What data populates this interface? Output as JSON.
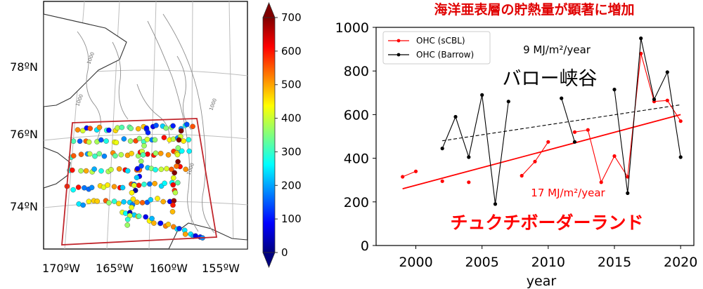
{
  "chart_data": [
    {
      "type": "scatter",
      "panel": "map",
      "lat_ticks": [
        "78ºN",
        "76ºN",
        "74ºN"
      ],
      "lon_ticks": [
        "170ºW",
        "165ºW",
        "160ºW",
        "155ºW"
      ],
      "isobath_labels": [
        "1000",
        "1000",
        "1000",
        "1000"
      ],
      "colorbar": {
        "min": 0,
        "max": 700,
        "ticks": [
          "700",
          "600",
          "500",
          "400",
          "300",
          "200",
          "100",
          "0"
        ],
        "colors": [
          "#00007f",
          "#0000ff",
          "#007fff",
          "#00ffff",
          "#7fff7f",
          "#ffff00",
          "#ff7f00",
          "#ff0000",
          "#7f0000"
        ]
      }
    },
    {
      "type": "line",
      "panel": "timeseries",
      "title": "海洋亜表層の貯熱量が顕著に増加",
      "xlabel": "year",
      "xlim": [
        1997,
        2021
      ],
      "ylim": [
        0,
        1000
      ],
      "x_ticks": [
        "2000",
        "2005",
        "2010",
        "2015",
        "2020"
      ],
      "y_ticks": [
        "0",
        "200",
        "400",
        "600",
        "800",
        "1000"
      ],
      "legend": "top-left",
      "series": [
        {
          "name": "OHC (sCBL)",
          "color": "#ff0000",
          "points": [
            [
              1999,
              315
            ],
            [
              2000,
              340
            ],
            [
              2002,
              295
            ],
            [
              2004,
              290
            ],
            [
              2008,
              320
            ],
            [
              2009,
              385
            ],
            [
              2010,
              475
            ],
            [
              2012,
              520
            ],
            [
              2013,
              530
            ],
            [
              2014,
              290
            ],
            [
              2015,
              410
            ],
            [
              2016,
              315
            ],
            [
              2017,
              880
            ],
            [
              2018,
              660
            ],
            [
              2019,
              665
            ],
            [
              2020,
              570
            ]
          ],
          "segments": [
            [
              [
                1999,
                315
              ],
              [
                2000,
                340
              ]
            ],
            [
              [
                2008,
                320
              ],
              [
                2009,
                385
              ],
              [
                2010,
                475
              ]
            ],
            [
              [
                2012,
                520
              ],
              [
                2013,
                530
              ],
              [
                2014,
                290
              ],
              [
                2015,
                410
              ],
              [
                2016,
                315
              ],
              [
                2017,
                880
              ],
              [
                2018,
                660
              ],
              [
                2019,
                665
              ],
              [
                2020,
                570
              ]
            ]
          ],
          "trend": {
            "from": [
              1999,
              260
            ],
            "to": [
              2020,
              600
            ],
            "label": "17 MJ/m²/year"
          },
          "region_label": "チュクチボーダーランド"
        },
        {
          "name": "OHC (Barrow)",
          "color": "#000000",
          "points": [
            [
              2002,
              445
            ],
            [
              2003,
              590
            ],
            [
              2004,
              405
            ],
            [
              2005,
              690
            ],
            [
              2006,
              190
            ],
            [
              2007,
              660
            ],
            [
              2011,
              675
            ],
            [
              2012,
              475
            ],
            [
              2015,
              715
            ],
            [
              2016,
              240
            ],
            [
              2017,
              950
            ],
            [
              2018,
              670
            ],
            [
              2019,
              795
            ],
            [
              2020,
              405
            ]
          ],
          "segments": [
            [
              [
                2002,
                445
              ],
              [
                2003,
                590
              ],
              [
                2004,
                405
              ],
              [
                2005,
                690
              ],
              [
                2006,
                190
              ],
              [
                2007,
                660
              ]
            ],
            [
              [
                2011,
                675
              ],
              [
                2012,
                475
              ]
            ],
            [
              [
                2015,
                715
              ],
              [
                2016,
                240
              ],
              [
                2017,
                950
              ],
              [
                2018,
                670
              ],
              [
                2019,
                795
              ],
              [
                2020,
                405
              ]
            ]
          ],
          "trend": {
            "from": [
              2002,
              480
            ],
            "to": [
              2020,
              645
            ],
            "label": "9 MJ/m²/year"
          },
          "region_label": "バロー峡谷"
        }
      ]
    }
  ]
}
